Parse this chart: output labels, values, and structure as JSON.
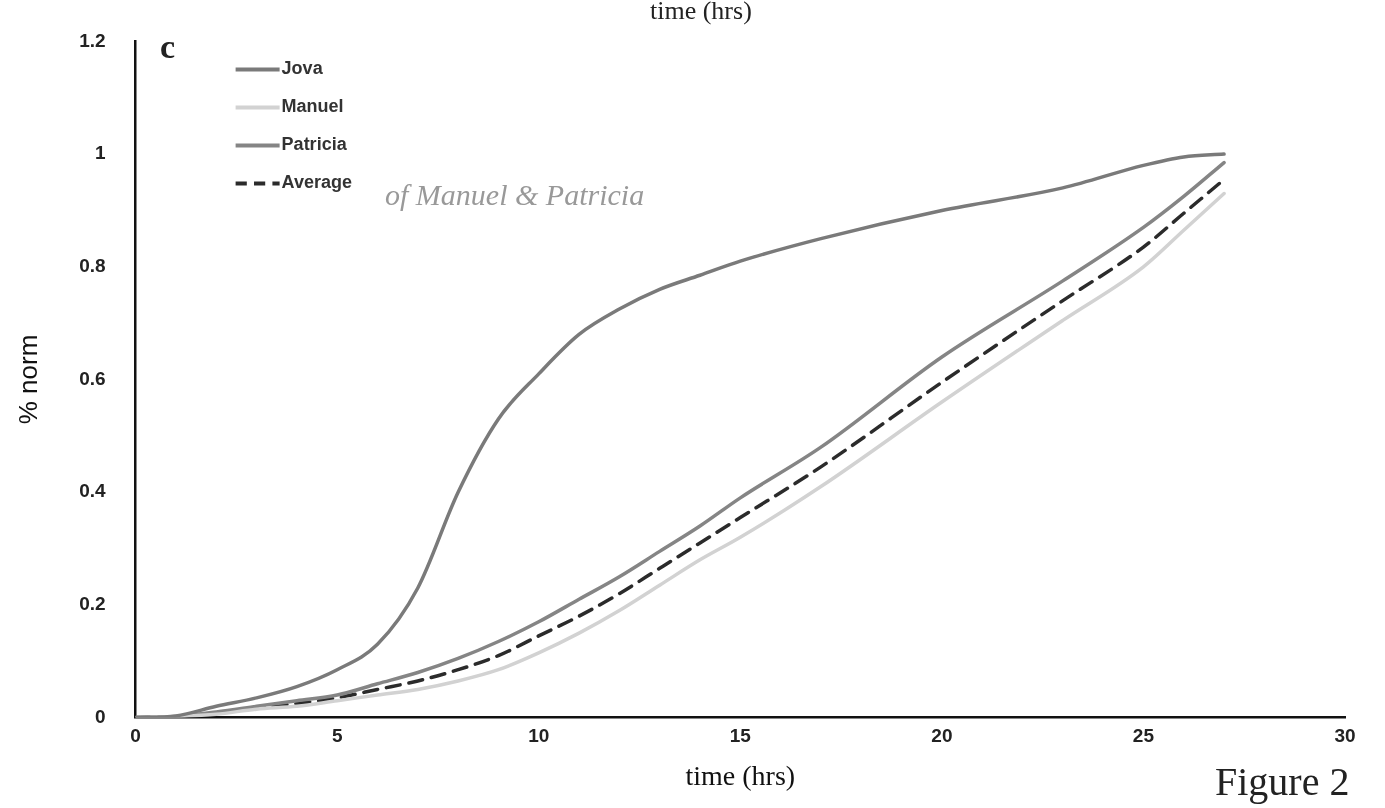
{
  "chart_data": {
    "type": "line",
    "xlabel": "time (hrs)",
    "ylabel": "% norm",
    "x": [
      0,
      1,
      2,
      3,
      4,
      5,
      6,
      7,
      8,
      9,
      10,
      11,
      12,
      13,
      14,
      15,
      17,
      20,
      23,
      25,
      26,
      27
    ],
    "series": [
      {
        "name": "Jova",
        "color": "#7a7a7a",
        "values": [
          0,
          0.003,
          0.02,
          0.035,
          0.055,
          0.085,
          0.13,
          0.23,
          0.4,
          0.53,
          0.61,
          0.68,
          0.725,
          0.76,
          0.785,
          0.81,
          0.85,
          0.9,
          0.94,
          0.98,
          0.995,
          1.0
        ]
      },
      {
        "name": "Manuel",
        "color": "#d2d2d2",
        "values": [
          0,
          0.002,
          0.006,
          0.015,
          0.02,
          0.03,
          0.04,
          0.05,
          0.065,
          0.085,
          0.115,
          0.15,
          0.19,
          0.235,
          0.28,
          0.32,
          0.41,
          0.56,
          0.705,
          0.8,
          0.865,
          0.93
        ]
      },
      {
        "name": "Patricia",
        "color": "#858585",
        "values": [
          0,
          0.002,
          0.01,
          0.02,
          0.03,
          0.04,
          0.06,
          0.08,
          0.105,
          0.135,
          0.17,
          0.21,
          0.25,
          0.295,
          0.34,
          0.39,
          0.48,
          0.64,
          0.775,
          0.87,
          0.925,
          0.985
        ]
      },
      {
        "name": "Average",
        "color": "#2b2b2b",
        "line_style": "dashed",
        "values": [
          0,
          0.002,
          0.008,
          0.018,
          0.025,
          0.035,
          0.05,
          0.065,
          0.085,
          0.11,
          0.145,
          0.18,
          0.22,
          0.265,
          0.31,
          0.355,
          0.445,
          0.595,
          0.74,
          0.835,
          0.895,
          0.955
        ]
      }
    ],
    "xlim": [
      0,
      30
    ],
    "xticks": [
      0,
      5,
      10,
      15,
      20,
      25,
      30
    ],
    "ylim": [
      0,
      1.2
    ],
    "yticks": [
      0,
      0.2,
      0.4,
      0.6,
      0.8,
      1,
      1.2
    ],
    "grid": false,
    "legend": "top left",
    "marker": "none",
    "annotations": [
      "time (hrs)",
      "c",
      "of Manuel & Patricia",
      "Figure 2"
    ]
  }
}
